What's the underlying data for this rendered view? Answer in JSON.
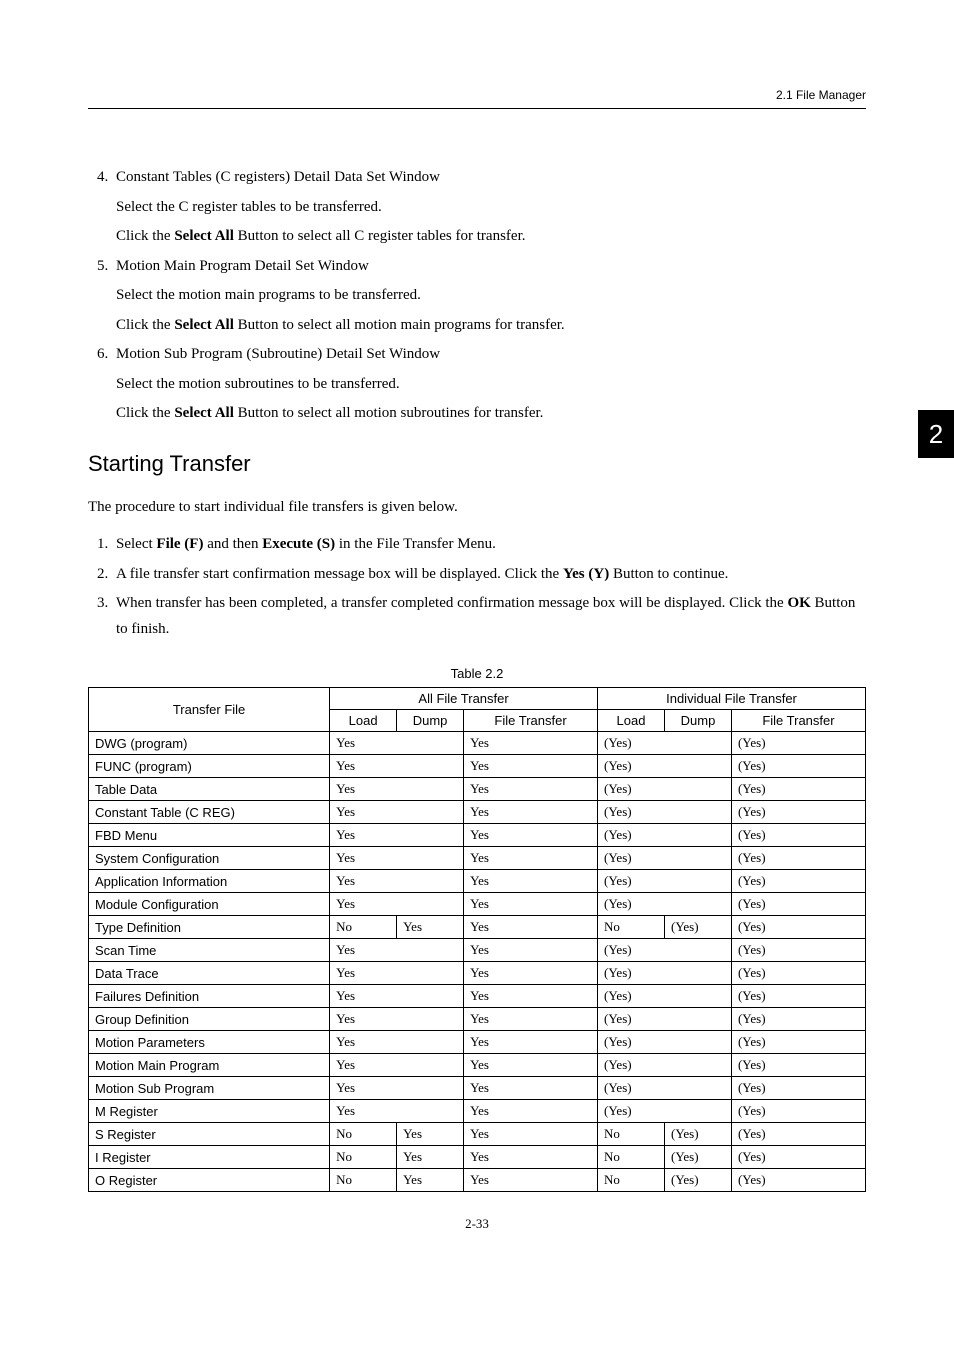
{
  "header": {
    "section_ref": "2.1  File Manager"
  },
  "chapter_tab": "2",
  "top_list": [
    {
      "num": "4.",
      "title": "Constant Tables (C registers) Detail Data Set Window",
      "line1": "Select the C register tables to be transferred.",
      "line2_pre": "Click the ",
      "line2_bold": "Select All",
      "line2_post": " Button to select all C register tables for transfer."
    },
    {
      "num": "5.",
      "title": "Motion Main Program Detail Set Window",
      "line1": "Select the motion main programs to be transferred.",
      "line2_pre": "Click the ",
      "line2_bold": "Select All",
      "line2_post": " Button to select all motion main programs for transfer."
    },
    {
      "num": "6.",
      "title": "Motion Sub Program (Subroutine) Detail Set Window",
      "line1": "Select the motion subroutines to be transferred.",
      "line2_pre": "Click the ",
      "line2_bold": "Select All",
      "line2_post": " Button to select all motion subroutines for transfer."
    }
  ],
  "section_heading": "Starting Transfer",
  "intro_paragraph": "The procedure to start individual file transfers is given below.",
  "steps": [
    {
      "pre": "Select ",
      "b1": "File (F)",
      "mid": " and then ",
      "b2": "Execute (S)",
      "post": " in the File Transfer Menu."
    },
    {
      "pre": "A file transfer start confirmation message box will be displayed. Click the ",
      "b1": "Yes (Y)",
      "mid": "",
      "b2": "",
      "post": " Button to continue."
    },
    {
      "pre": "When transfer has been completed, a transfer completed confirmation message box will be displayed. Click the ",
      "b1": "OK",
      "mid": "",
      "b2": "",
      "post": " Button to finish."
    }
  ],
  "table_caption": "Table 2.2",
  "table": {
    "header": {
      "transfer_file": "Transfer File",
      "all_file_transfer": "All File Transfer",
      "individual_file_transfer": "Individual File Transfer",
      "load": "Load",
      "dump": "Dump",
      "file_transfer": "File Transfer"
    },
    "rows": [
      {
        "label": "DWG (program)",
        "a_load": "Yes",
        "a_dump": "",
        "a_ft": "Yes",
        "i_load": "(Yes)",
        "i_dump": "",
        "i_ft": "(Yes)",
        "merge": true
      },
      {
        "label": "FUNC (program)",
        "a_load": "Yes",
        "a_dump": "",
        "a_ft": "Yes",
        "i_load": "(Yes)",
        "i_dump": "",
        "i_ft": "(Yes)",
        "merge": true
      },
      {
        "label": "Table Data",
        "a_load": "Yes",
        "a_dump": "",
        "a_ft": "Yes",
        "i_load": "(Yes)",
        "i_dump": "",
        "i_ft": "(Yes)",
        "merge": true
      },
      {
        "label": "Constant Table (C REG)",
        "a_load": "Yes",
        "a_dump": "",
        "a_ft": "Yes",
        "i_load": "(Yes)",
        "i_dump": "",
        "i_ft": "(Yes)",
        "merge": true
      },
      {
        "label": "FBD Menu",
        "a_load": "Yes",
        "a_dump": "",
        "a_ft": "Yes",
        "i_load": "(Yes)",
        "i_dump": "",
        "i_ft": "(Yes)",
        "merge": true
      },
      {
        "label": "System Configuration",
        "a_load": "Yes",
        "a_dump": "",
        "a_ft": "Yes",
        "i_load": "(Yes)",
        "i_dump": "",
        "i_ft": "(Yes)",
        "merge": true
      },
      {
        "label": "Application Information",
        "a_load": "Yes",
        "a_dump": "",
        "a_ft": "Yes",
        "i_load": "(Yes)",
        "i_dump": "",
        "i_ft": "(Yes)",
        "merge": true
      },
      {
        "label": "Module Configuration",
        "a_load": "Yes",
        "a_dump": "",
        "a_ft": "Yes",
        "i_load": "(Yes)",
        "i_dump": "",
        "i_ft": "(Yes)",
        "merge": true
      },
      {
        "label": "Type Definition",
        "a_load": "No",
        "a_dump": "Yes",
        "a_ft": "Yes",
        "i_load": "No",
        "i_dump": "(Yes)",
        "i_ft": "(Yes)",
        "merge": false
      },
      {
        "label": "Scan Time",
        "a_load": "Yes",
        "a_dump": "",
        "a_ft": "Yes",
        "i_load": "(Yes)",
        "i_dump": "",
        "i_ft": "(Yes)",
        "merge": true
      },
      {
        "label": "Data Trace",
        "a_load": "Yes",
        "a_dump": "",
        "a_ft": "Yes",
        "i_load": "(Yes)",
        "i_dump": "",
        "i_ft": "(Yes)",
        "merge": true
      },
      {
        "label": "Failures Definition",
        "a_load": "Yes",
        "a_dump": "",
        "a_ft": "Yes",
        "i_load": "(Yes)",
        "i_dump": "",
        "i_ft": "(Yes)",
        "merge": true
      },
      {
        "label": "Group Definition",
        "a_load": "Yes",
        "a_dump": "",
        "a_ft": "Yes",
        "i_load": "(Yes)",
        "i_dump": "",
        "i_ft": "(Yes)",
        "merge": true
      },
      {
        "label": "Motion Parameters",
        "a_load": "Yes",
        "a_dump": "",
        "a_ft": "Yes",
        "i_load": "(Yes)",
        "i_dump": "",
        "i_ft": "(Yes)",
        "merge": true
      },
      {
        "label": "Motion Main Program",
        "a_load": "Yes",
        "a_dump": "",
        "a_ft": "Yes",
        "i_load": "(Yes)",
        "i_dump": "",
        "i_ft": "(Yes)",
        "merge": true
      },
      {
        "label": "Motion Sub Program",
        "a_load": "Yes",
        "a_dump": "",
        "a_ft": "Yes",
        "i_load": "(Yes)",
        "i_dump": "",
        "i_ft": "(Yes)",
        "merge": true
      },
      {
        "label": "M Register",
        "a_load": "Yes",
        "a_dump": "",
        "a_ft": "Yes",
        "i_load": "(Yes)",
        "i_dump": "",
        "i_ft": "(Yes)",
        "merge": true
      },
      {
        "label": "S Register",
        "a_load": "No",
        "a_dump": "Yes",
        "a_ft": "Yes",
        "i_load": "No",
        "i_dump": "(Yes)",
        "i_ft": "(Yes)",
        "merge": false
      },
      {
        "label": "I Register",
        "a_load": "No",
        "a_dump": "Yes",
        "a_ft": "Yes",
        "i_load": "No",
        "i_dump": "(Yes)",
        "i_ft": "(Yes)",
        "merge": false
      },
      {
        "label": "O Register",
        "a_load": "No",
        "a_dump": "Yes",
        "a_ft": "Yes",
        "i_load": "No",
        "i_dump": "(Yes)",
        "i_ft": "(Yes)",
        "merge": false
      }
    ]
  },
  "footer": "2-33"
}
